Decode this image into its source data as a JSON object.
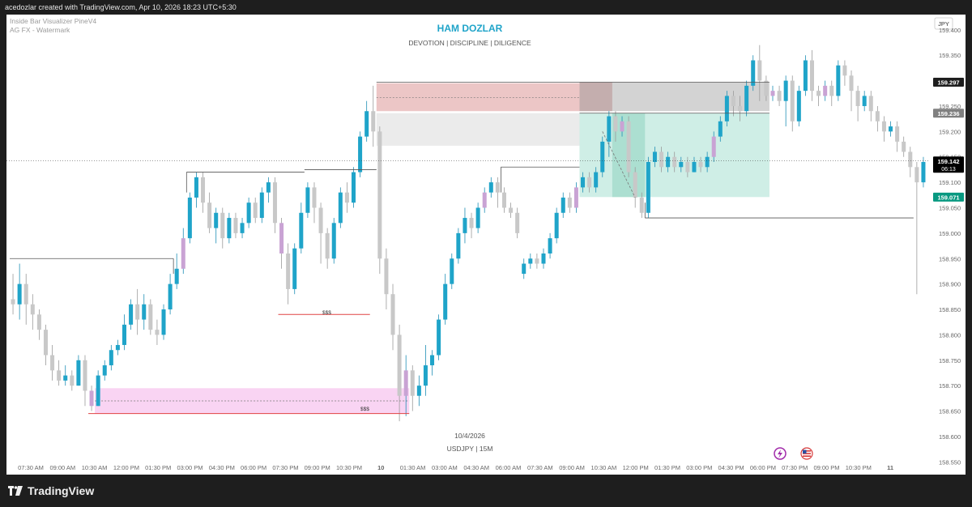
{
  "header": {
    "text": "acedozlar created with TradingView.com, Apr 10, 2026 18:23 UTC+5:30"
  },
  "indicators": [
    "Inside Bar Visualizer PineV4",
    "AG FX - Watermark"
  ],
  "watermark": {
    "title": "HAM DOZLAR",
    "subtitle": "DEVOTION | DISCIPLINE | DILIGENCE",
    "date": "10/4/2026",
    "symbol": "USDJPY | 15M"
  },
  "currency": "JPY",
  "labels": {
    "liq1": "$$$",
    "liq2": "$$$"
  },
  "price_badges": [
    {
      "value": "159.297",
      "bg": "#1e1e1e",
      "fg": "#ffffff"
    },
    {
      "value": "159.236",
      "bg": "#808080",
      "fg": "#ffffff"
    },
    {
      "value": "159.142",
      "sub": "06:13",
      "bg": "#000000",
      "fg": "#ffffff"
    },
    {
      "value": "159.071",
      "bg": "#089981",
      "fg": "#ffffff"
    }
  ],
  "brand": {
    "name": "TradingView"
  },
  "colors": {
    "bull": "#1fa4c9",
    "bear": "#c8c8c8",
    "inside": "#c9a3d4"
  },
  "chart_data": {
    "type": "candlestick",
    "symbol": "USDJPY",
    "timeframe": "15M",
    "y_ticks": [
      "159.400",
      "159.350",
      "159.300",
      "159.250",
      "159.200",
      "159.150",
      "159.100",
      "159.050",
      "159.000",
      "158.950",
      "158.900",
      "158.850",
      "158.800",
      "158.750",
      "158.700",
      "158.650",
      "158.600",
      "158.550"
    ],
    "y_tick_values": [
      159.4,
      159.35,
      159.3,
      159.25,
      159.2,
      159.15,
      159.1,
      159.05,
      159.0,
      158.95,
      158.9,
      158.85,
      158.8,
      158.75,
      158.7,
      158.65,
      158.6,
      158.55
    ],
    "x_ticks": [
      "07:30 AM",
      "09:00 AM",
      "10:30 AM",
      "12:00 PM",
      "01:30 PM",
      "03:00 PM",
      "04:30 PM",
      "06:00 PM",
      "07:30 PM",
      "09:00 PM",
      "10:30 PM",
      "10",
      "01:30 AM",
      "03:00 AM",
      "04:30 AM",
      "06:00 AM",
      "07:30 AM",
      "09:00 AM",
      "10:30 AM",
      "12:00 PM",
      "01:30 PM",
      "03:00 PM",
      "04:30 PM",
      "06:00 PM",
      "07:30 PM",
      "09:00 PM",
      "10:30 PM",
      "11"
    ],
    "ylim": [
      158.525,
      159.43
    ],
    "candles": [
      [
        158.87,
        158.86,
        158.92,
        158.84
      ],
      [
        158.86,
        158.9,
        158.94,
        158.83
      ],
      [
        158.9,
        158.86,
        158.92,
        158.82
      ],
      [
        158.86,
        158.84,
        158.88,
        158.81
      ],
      [
        158.84,
        158.81,
        158.85,
        158.79
      ],
      [
        158.81,
        158.76,
        158.82,
        158.74
      ],
      [
        158.76,
        158.73,
        158.78,
        158.71
      ],
      [
        158.73,
        158.71,
        158.75,
        158.7
      ],
      [
        158.71,
        158.72,
        158.74,
        158.7
      ],
      [
        158.72,
        158.7,
        158.73,
        158.69
      ],
      [
        158.7,
        158.75,
        158.76,
        158.7
      ],
      [
        158.75,
        158.69,
        158.76,
        158.66
      ],
      [
        158.69,
        158.66,
        158.7,
        158.65
      ],
      [
        158.66,
        158.72,
        158.73,
        158.66
      ],
      [
        158.72,
        158.74,
        158.75,
        158.71
      ],
      [
        158.74,
        158.77,
        158.78,
        158.73
      ],
      [
        158.77,
        158.78,
        158.79,
        158.76
      ],
      [
        158.78,
        158.82,
        158.84,
        158.77
      ],
      [
        158.82,
        158.86,
        158.87,
        158.81
      ],
      [
        158.86,
        158.83,
        158.89,
        158.8
      ],
      [
        158.83,
        158.86,
        158.88,
        158.81
      ],
      [
        158.86,
        158.81,
        158.87,
        158.8
      ],
      [
        158.81,
        158.8,
        158.83,
        158.78
      ],
      [
        158.8,
        158.85,
        158.86,
        158.79
      ],
      [
        158.85,
        158.9,
        158.92,
        158.84
      ],
      [
        158.9,
        158.93,
        158.96,
        158.89
      ],
      [
        158.93,
        158.99,
        159.01,
        158.92
      ],
      [
        158.99,
        159.07,
        159.08,
        158.98
      ],
      [
        159.07,
        159.11,
        159.12,
        159.05
      ],
      [
        159.11,
        159.06,
        159.12,
        159.04
      ],
      [
        159.06,
        159.01,
        159.08,
        159.0
      ],
      [
        159.01,
        159.04,
        159.05,
        158.98
      ],
      [
        159.04,
        158.99,
        159.05,
        158.97
      ],
      [
        158.99,
        159.03,
        159.04,
        158.98
      ],
      [
        159.03,
        159.0,
        159.04,
        158.99
      ],
      [
        159.0,
        159.02,
        159.03,
        158.99
      ],
      [
        159.02,
        159.06,
        159.07,
        159.01
      ],
      [
        159.06,
        159.03,
        159.07,
        159.02
      ],
      [
        159.03,
        159.08,
        159.09,
        159.02
      ],
      [
        159.08,
        159.1,
        159.11,
        159.06
      ],
      [
        159.1,
        159.02,
        159.11,
        159.0
      ],
      [
        159.02,
        158.96,
        159.03,
        158.93
      ],
      [
        158.96,
        158.89,
        158.98,
        158.86
      ],
      [
        158.89,
        158.97,
        158.98,
        158.88
      ],
      [
        158.97,
        159.04,
        159.06,
        158.96
      ],
      [
        159.04,
        159.09,
        159.1,
        159.03
      ],
      [
        159.09,
        159.05,
        159.1,
        159.02
      ],
      [
        159.05,
        159.0,
        159.06,
        158.94
      ],
      [
        159.0,
        158.95,
        159.01,
        158.93
      ],
      [
        158.95,
        159.02,
        159.03,
        158.94
      ],
      [
        159.02,
        159.08,
        159.09,
        159.01
      ],
      [
        159.08,
        159.06,
        159.1,
        159.04
      ],
      [
        159.06,
        159.12,
        159.13,
        159.05
      ],
      [
        159.12,
        159.19,
        159.2,
        159.11
      ],
      [
        159.19,
        159.24,
        159.26,
        159.18
      ],
      [
        159.24,
        159.2,
        159.29,
        159.17
      ],
      [
        159.2,
        158.95,
        159.21,
        158.92
      ],
      [
        158.95,
        158.88,
        158.97,
        158.85
      ],
      [
        158.88,
        158.8,
        158.9,
        158.77
      ],
      [
        158.8,
        158.68,
        158.82,
        158.63
      ],
      [
        158.68,
        158.73,
        158.76,
        158.64
      ],
      [
        158.73,
        158.68,
        158.74,
        158.65
      ],
      [
        158.68,
        158.7,
        158.72,
        158.66
      ],
      [
        158.7,
        158.74,
        158.78,
        158.68
      ],
      [
        158.74,
        158.76,
        158.77,
        158.72
      ],
      [
        158.76,
        158.83,
        158.84,
        158.75
      ],
      [
        158.83,
        158.9,
        158.92,
        158.82
      ],
      [
        158.9,
        158.95,
        158.96,
        158.89
      ],
      [
        158.95,
        159.0,
        159.01,
        158.94
      ],
      [
        159.0,
        159.03,
        159.05,
        158.98
      ],
      [
        159.03,
        159.01,
        159.04,
        158.99
      ],
      [
        159.01,
        159.05,
        159.06,
        159.0
      ],
      [
        159.05,
        159.08,
        159.09,
        159.04
      ],
      [
        159.08,
        159.1,
        159.11,
        159.07
      ],
      [
        159.1,
        159.08,
        159.11,
        159.05
      ],
      [
        159.08,
        159.05,
        159.09,
        159.04
      ],
      [
        159.05,
        159.04,
        159.06,
        159.03
      ],
      [
        159.04,
        159.0,
        159.05,
        158.99
      ],
      [
        158.92,
        158.94,
        158.95,
        158.91
      ],
      [
        158.94,
        158.95,
        158.96,
        158.93
      ],
      [
        158.95,
        158.94,
        158.96,
        158.93
      ],
      [
        158.94,
        158.96,
        158.97,
        158.93
      ],
      [
        158.96,
        158.99,
        159.0,
        158.95
      ],
      [
        158.99,
        159.04,
        159.05,
        158.98
      ],
      [
        159.04,
        159.07,
        159.08,
        159.03
      ],
      [
        159.07,
        159.05,
        159.08,
        159.04
      ],
      [
        159.05,
        159.09,
        159.1,
        159.04
      ],
      [
        159.09,
        159.11,
        159.12,
        159.08
      ],
      [
        159.11,
        159.09,
        159.12,
        159.08
      ],
      [
        159.09,
        159.12,
        159.13,
        159.08
      ],
      [
        159.12,
        159.18,
        159.19,
        159.11
      ],
      [
        159.18,
        159.23,
        159.24,
        159.15
      ],
      [
        159.23,
        159.2,
        159.24,
        159.18
      ],
      [
        159.2,
        159.22,
        159.23,
        159.19
      ],
      [
        159.22,
        159.12,
        159.23,
        159.11
      ],
      [
        159.12,
        159.07,
        159.13,
        159.05
      ],
      [
        159.07,
        159.04,
        159.08,
        159.03
      ],
      [
        159.04,
        159.14,
        159.15,
        159.03
      ],
      [
        159.14,
        159.16,
        159.17,
        159.13
      ],
      [
        159.16,
        159.13,
        159.17,
        159.12
      ],
      [
        159.13,
        159.15,
        159.16,
        159.12
      ],
      [
        159.15,
        159.13,
        159.16,
        159.12
      ],
      [
        159.13,
        159.14,
        159.15,
        159.12
      ],
      [
        159.14,
        159.12,
        159.15,
        159.11
      ],
      [
        159.12,
        159.14,
        159.15,
        159.12
      ],
      [
        159.14,
        159.13,
        159.15,
        159.12
      ],
      [
        159.13,
        159.15,
        159.16,
        159.12
      ],
      [
        159.15,
        159.19,
        159.2,
        159.14
      ],
      [
        159.19,
        159.22,
        159.23,
        159.18
      ],
      [
        159.22,
        159.27,
        159.28,
        159.21
      ],
      [
        159.27,
        159.25,
        159.28,
        159.23
      ],
      [
        159.25,
        159.24,
        159.27,
        159.22
      ],
      [
        159.24,
        159.29,
        159.3,
        159.23
      ],
      [
        159.29,
        159.34,
        159.35,
        159.28
      ],
      [
        159.34,
        159.3,
        159.37,
        159.26
      ],
      [
        159.3,
        159.27,
        159.31,
        159.26
      ],
      [
        159.27,
        159.28,
        159.29,
        159.26
      ],
      [
        159.28,
        159.26,
        159.29,
        159.25
      ],
      [
        159.26,
        159.3,
        159.31,
        159.21
      ],
      [
        159.3,
        159.22,
        159.31,
        159.2
      ],
      [
        159.22,
        159.28,
        159.29,
        159.21
      ],
      [
        159.28,
        159.34,
        159.35,
        159.27
      ],
      [
        159.34,
        159.28,
        159.36,
        159.26
      ],
      [
        159.28,
        159.27,
        159.29,
        159.25
      ],
      [
        159.27,
        159.29,
        159.3,
        159.26
      ],
      [
        159.29,
        159.27,
        159.3,
        159.25
      ],
      [
        159.27,
        159.33,
        159.34,
        159.26
      ],
      [
        159.33,
        159.31,
        159.34,
        159.29
      ],
      [
        159.31,
        159.28,
        159.32,
        159.24
      ],
      [
        159.28,
        159.25,
        159.29,
        159.22
      ],
      [
        159.25,
        159.27,
        159.28,
        159.24
      ],
      [
        159.27,
        159.24,
        159.28,
        159.22
      ],
      [
        159.24,
        159.22,
        159.25,
        159.2
      ],
      [
        159.22,
        159.2,
        159.23,
        159.18
      ],
      [
        159.2,
        159.21,
        159.22,
        159.19
      ],
      [
        159.21,
        159.18,
        159.22,
        159.16
      ],
      [
        159.18,
        159.16,
        159.19,
        159.15
      ],
      [
        159.16,
        159.13,
        159.17,
        159.11
      ],
      [
        159.13,
        159.1,
        159.14,
        158.88
      ],
      [
        159.1,
        159.14,
        159.15,
        159.09
      ]
    ],
    "inside_bars": [
      12,
      26,
      41,
      60,
      72,
      86,
      93,
      107,
      116,
      124
    ],
    "current_price": 159.142
  }
}
